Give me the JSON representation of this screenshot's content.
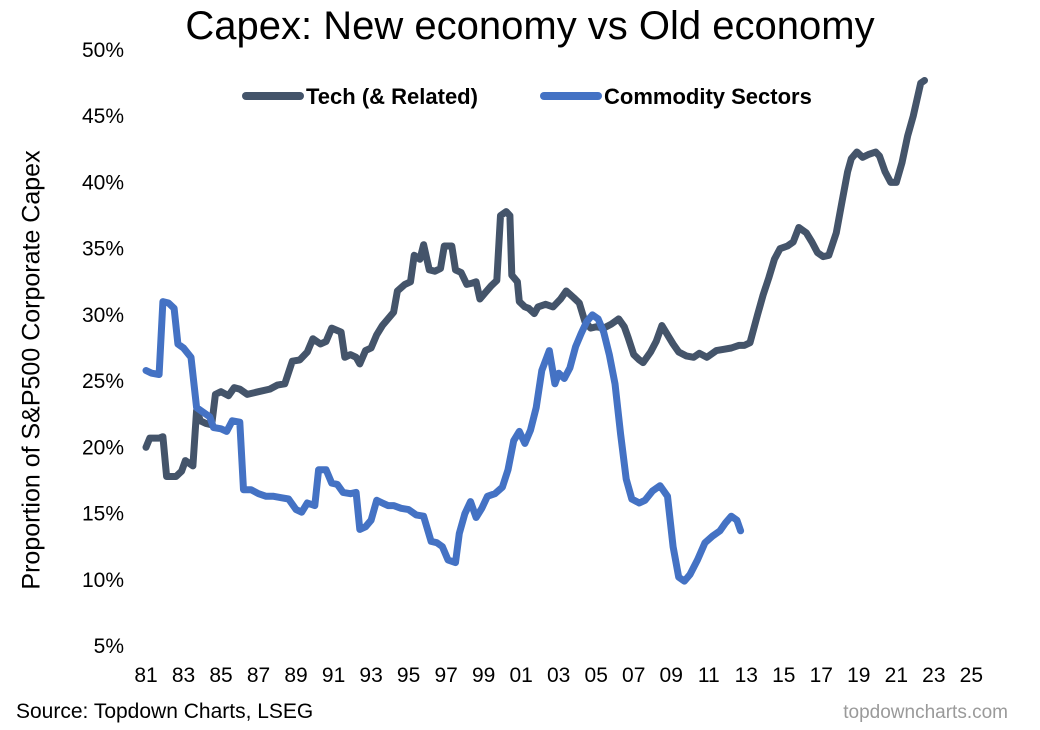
{
  "chart_data": {
    "type": "line",
    "title": "Capex: New economy vs Old economy",
    "xlabel": "",
    "ylabel": "Proportion of S&P500 Corporate Capex",
    "xlim": [
      1981,
      2026.1
    ],
    "ylim": [
      5,
      50
    ],
    "y_ticks": [
      5,
      10,
      15,
      20,
      25,
      30,
      35,
      40,
      45,
      50
    ],
    "y_tick_labels": [
      "5%",
      "10%",
      "15%",
      "20%",
      "25%",
      "30%",
      "35%",
      "40%",
      "45%",
      "50%"
    ],
    "x_ticks": [
      1981,
      1983,
      1985,
      1987,
      1989,
      1991,
      1993,
      1995,
      1997,
      1999,
      2001,
      2003,
      2005,
      2007,
      2009,
      2011,
      2013,
      2015,
      2017,
      2019,
      2021,
      2023,
      2025
    ],
    "x_tick_labels": [
      "81",
      "83",
      "85",
      "87",
      "89",
      "91",
      "93",
      "95",
      "97",
      "99",
      "01",
      "03",
      "05",
      "07",
      "09",
      "11",
      "13",
      "15",
      "17",
      "19",
      "21",
      "23",
      "25"
    ],
    "legend_position": "top-center",
    "series": [
      {
        "name": "Tech (& Related)",
        "color": "#44546a",
        "points": [
          [
            1981.0,
            20.0
          ],
          [
            1981.2,
            20.7
          ],
          [
            1981.7,
            20.7
          ],
          [
            1981.9,
            20.8
          ],
          [
            1982.1,
            17.8
          ],
          [
            1982.6,
            17.8
          ],
          [
            1982.9,
            18.2
          ],
          [
            1983.1,
            19.0
          ],
          [
            1983.5,
            18.6
          ],
          [
            1983.7,
            22.8
          ],
          [
            1983.9,
            22.0
          ],
          [
            1984.2,
            21.8
          ],
          [
            1984.5,
            21.7
          ],
          [
            1984.7,
            24.0
          ],
          [
            1985.0,
            24.2
          ],
          [
            1985.4,
            23.9
          ],
          [
            1985.7,
            24.5
          ],
          [
            1986.0,
            24.4
          ],
          [
            1986.4,
            24.0
          ],
          [
            1987.0,
            24.2
          ],
          [
            1987.6,
            24.4
          ],
          [
            1988.0,
            24.7
          ],
          [
            1988.4,
            24.8
          ],
          [
            1988.8,
            26.5
          ],
          [
            1989.2,
            26.6
          ],
          [
            1989.6,
            27.2
          ],
          [
            1989.9,
            28.2
          ],
          [
            1990.3,
            27.8
          ],
          [
            1990.6,
            28.0
          ],
          [
            1990.9,
            29.0
          ],
          [
            1991.4,
            28.7
          ],
          [
            1991.6,
            26.8
          ],
          [
            1991.9,
            27.0
          ],
          [
            1992.2,
            26.8
          ],
          [
            1992.4,
            26.3
          ],
          [
            1992.7,
            27.3
          ],
          [
            1993.0,
            27.5
          ],
          [
            1993.3,
            28.5
          ],
          [
            1993.6,
            29.2
          ],
          [
            1993.9,
            29.7
          ],
          [
            1994.2,
            30.2
          ],
          [
            1994.4,
            31.8
          ],
          [
            1994.8,
            32.3
          ],
          [
            1995.1,
            32.5
          ],
          [
            1995.3,
            34.5
          ],
          [
            1995.6,
            34.2
          ],
          [
            1995.8,
            35.3
          ],
          [
            1996.1,
            33.4
          ],
          [
            1996.4,
            33.3
          ],
          [
            1996.7,
            33.5
          ],
          [
            1996.9,
            35.2
          ],
          [
            1997.3,
            35.2
          ],
          [
            1997.5,
            33.4
          ],
          [
            1997.8,
            33.2
          ],
          [
            1998.1,
            32.3
          ],
          [
            1998.4,
            32.4
          ],
          [
            1998.6,
            32.5
          ],
          [
            1998.8,
            31.2
          ],
          [
            1999.1,
            31.7
          ],
          [
            1999.4,
            32.2
          ],
          [
            1999.7,
            32.6
          ],
          [
            1999.9,
            37.5
          ],
          [
            2000.2,
            37.8
          ],
          [
            2000.4,
            37.5
          ],
          [
            2000.5,
            33.0
          ],
          [
            2000.8,
            32.5
          ],
          [
            2000.9,
            31.0
          ],
          [
            2001.2,
            30.6
          ],
          [
            2001.4,
            30.5
          ],
          [
            2001.7,
            30.1
          ],
          [
            2001.9,
            30.6
          ],
          [
            2002.3,
            30.8
          ],
          [
            2002.7,
            30.6
          ],
          [
            2003.1,
            31.2
          ],
          [
            2003.4,
            31.8
          ],
          [
            2003.8,
            31.3
          ],
          [
            2004.1,
            30.9
          ],
          [
            2004.4,
            29.5
          ],
          [
            2004.7,
            29.0
          ],
          [
            2005.0,
            29.1
          ],
          [
            2005.4,
            29.0
          ],
          [
            2005.8,
            29.3
          ],
          [
            2006.2,
            29.7
          ],
          [
            2006.5,
            29.1
          ],
          [
            2006.7,
            28.3
          ],
          [
            2007.0,
            27.0
          ],
          [
            2007.3,
            26.6
          ],
          [
            2007.5,
            26.4
          ],
          [
            2007.9,
            27.2
          ],
          [
            2008.2,
            28.0
          ],
          [
            2008.5,
            29.2
          ],
          [
            2008.8,
            28.5
          ],
          [
            2009.1,
            27.8
          ],
          [
            2009.4,
            27.2
          ],
          [
            2009.8,
            26.9
          ],
          [
            2010.2,
            26.8
          ],
          [
            2010.5,
            27.1
          ],
          [
            2010.9,
            26.8
          ],
          [
            2011.4,
            27.3
          ],
          [
            2011.8,
            27.4
          ],
          [
            2012.2,
            27.5
          ],
          [
            2012.6,
            27.7
          ],
          [
            2012.9,
            27.7
          ],
          [
            2013.2,
            27.9
          ],
          [
            2013.6,
            30.0
          ],
          [
            2013.9,
            31.5
          ],
          [
            2014.2,
            32.8
          ],
          [
            2014.5,
            34.2
          ],
          [
            2014.8,
            35.0
          ],
          [
            2015.2,
            35.2
          ],
          [
            2015.5,
            35.5
          ],
          [
            2015.8,
            36.6
          ],
          [
            2016.2,
            36.2
          ],
          [
            2016.5,
            35.5
          ],
          [
            2016.8,
            34.7
          ],
          [
            2017.1,
            34.4
          ],
          [
            2017.4,
            34.5
          ],
          [
            2017.8,
            36.2
          ],
          [
            2018.1,
            38.5
          ],
          [
            2018.4,
            40.8
          ],
          [
            2018.6,
            41.8
          ],
          [
            2018.9,
            42.3
          ],
          [
            2019.2,
            41.9
          ],
          [
            2019.5,
            42.1
          ],
          [
            2019.9,
            42.3
          ],
          [
            2020.1,
            42.0
          ],
          [
            2020.4,
            40.8
          ],
          [
            2020.7,
            40.0
          ],
          [
            2021.0,
            40.0
          ],
          [
            2021.3,
            41.5
          ],
          [
            2021.6,
            43.5
          ],
          [
            2021.9,
            45.0
          ],
          [
            2022.3,
            47.5
          ],
          [
            2022.5,
            47.7
          ]
        ]
      },
      {
        "name": "Commodity Sectors",
        "color": "#4472c4",
        "points": [
          [
            1981.0,
            25.8
          ],
          [
            1981.3,
            25.6
          ],
          [
            1981.7,
            25.5
          ],
          [
            1981.9,
            31.0
          ],
          [
            1982.2,
            30.9
          ],
          [
            1982.5,
            30.5
          ],
          [
            1982.7,
            27.8
          ],
          [
            1983.0,
            27.5
          ],
          [
            1983.4,
            26.8
          ],
          [
            1983.7,
            23.0
          ],
          [
            1984.0,
            22.7
          ],
          [
            1984.4,
            22.3
          ],
          [
            1984.6,
            21.5
          ],
          [
            1985.0,
            21.4
          ],
          [
            1985.3,
            21.2
          ],
          [
            1985.6,
            22.0
          ],
          [
            1986.0,
            21.9
          ],
          [
            1986.2,
            16.8
          ],
          [
            1986.6,
            16.8
          ],
          [
            1987.0,
            16.5
          ],
          [
            1987.4,
            16.3
          ],
          [
            1987.8,
            16.3
          ],
          [
            1988.2,
            16.2
          ],
          [
            1988.6,
            16.1
          ],
          [
            1989.0,
            15.3
          ],
          [
            1989.3,
            15.1
          ],
          [
            1989.6,
            15.8
          ],
          [
            1990.0,
            15.6
          ],
          [
            1990.2,
            18.3
          ],
          [
            1990.6,
            18.3
          ],
          [
            1990.9,
            17.3
          ],
          [
            1991.2,
            17.2
          ],
          [
            1991.5,
            16.6
          ],
          [
            1991.9,
            16.5
          ],
          [
            1992.2,
            16.6
          ],
          [
            1992.4,
            13.8
          ],
          [
            1992.7,
            14.0
          ],
          [
            1993.0,
            14.5
          ],
          [
            1993.3,
            16.0
          ],
          [
            1993.6,
            15.8
          ],
          [
            1993.9,
            15.6
          ],
          [
            1994.2,
            15.6
          ],
          [
            1994.6,
            15.4
          ],
          [
            1995.0,
            15.3
          ],
          [
            1995.4,
            14.9
          ],
          [
            1995.8,
            14.8
          ],
          [
            1996.2,
            12.9
          ],
          [
            1996.5,
            12.8
          ],
          [
            1996.8,
            12.5
          ],
          [
            1997.1,
            11.5
          ],
          [
            1997.5,
            11.3
          ],
          [
            1997.7,
            13.5
          ],
          [
            1998.0,
            15.0
          ],
          [
            1998.3,
            15.9
          ],
          [
            1998.6,
            14.7
          ],
          [
            1998.9,
            15.4
          ],
          [
            1999.2,
            16.3
          ],
          [
            1999.6,
            16.5
          ],
          [
            2000.0,
            17.0
          ],
          [
            2000.3,
            18.3
          ],
          [
            2000.6,
            20.5
          ],
          [
            2000.9,
            21.2
          ],
          [
            2001.2,
            20.3
          ],
          [
            2001.5,
            21.3
          ],
          [
            2001.8,
            23.0
          ],
          [
            2002.1,
            25.8
          ],
          [
            2002.5,
            27.3
          ],
          [
            2002.8,
            24.8
          ],
          [
            2003.0,
            25.6
          ],
          [
            2003.3,
            25.2
          ],
          [
            2003.6,
            26.0
          ],
          [
            2003.9,
            27.6
          ],
          [
            2004.2,
            28.6
          ],
          [
            2004.5,
            29.5
          ],
          [
            2004.8,
            30.0
          ],
          [
            2005.1,
            29.7
          ],
          [
            2005.4,
            28.7
          ],
          [
            2005.7,
            27.0
          ],
          [
            2006.0,
            24.8
          ],
          [
            2006.3,
            21.0
          ],
          [
            2006.6,
            17.6
          ],
          [
            2006.9,
            16.1
          ],
          [
            2007.3,
            15.8
          ],
          [
            2007.6,
            16.0
          ],
          [
            2008.0,
            16.7
          ],
          [
            2008.4,
            17.1
          ],
          [
            2008.8,
            16.3
          ],
          [
            2009.1,
            12.5
          ],
          [
            2009.4,
            10.2
          ],
          [
            2009.7,
            9.9
          ],
          [
            2010.0,
            10.4
          ],
          [
            2010.4,
            11.5
          ],
          [
            2010.8,
            12.8
          ],
          [
            2011.2,
            13.3
          ],
          [
            2011.6,
            13.7
          ],
          [
            2011.9,
            14.3
          ],
          [
            2012.2,
            14.8
          ],
          [
            2012.5,
            14.5
          ],
          [
            2012.7,
            13.7
          ]
        ]
      }
    ]
  },
  "legend": {
    "tech_label": "Tech (& Related)",
    "commodity_label": "Commodity Sectors"
  },
  "footer": {
    "source": "Source: Topdown Charts, LSEG",
    "brand": "topdowncharts.com"
  }
}
